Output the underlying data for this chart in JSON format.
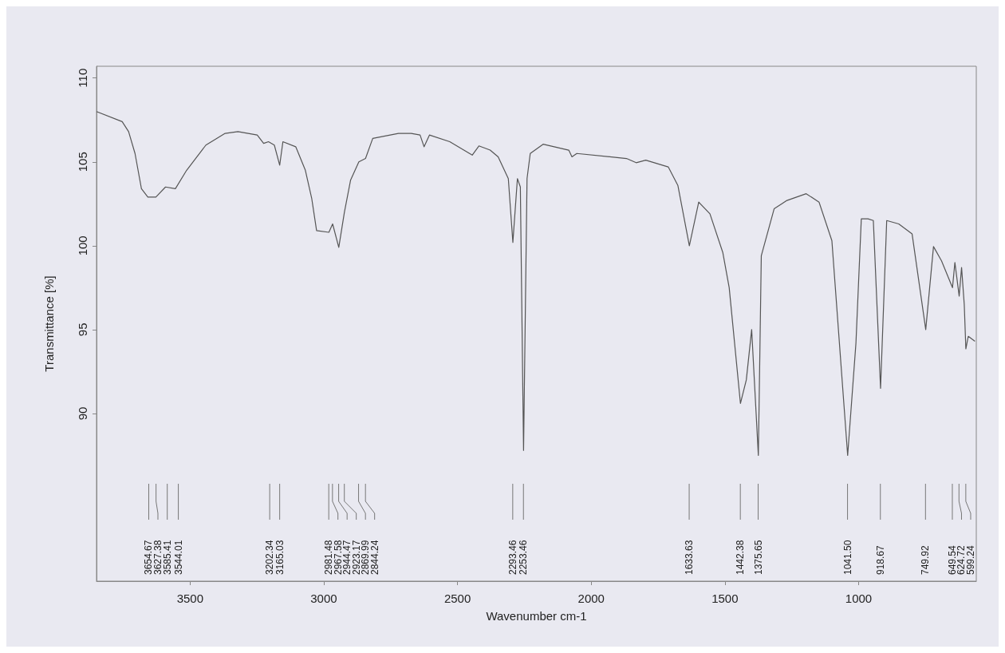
{
  "chart_data": {
    "type": "line",
    "xlabel": "Wavenumber cm-1",
    "ylabel": "Transmittance [%]",
    "xlim": [
      3850,
      560
    ],
    "xticks": [
      3500,
      3000,
      2500,
      2000,
      1500,
      1000
    ],
    "ylim": [
      80,
      110.7
    ],
    "yticks": [
      90,
      95,
      100,
      105,
      110
    ],
    "grid": false,
    "marker": "none",
    "line_style": "solid",
    "x": [
      3850,
      3754,
      3730,
      3706,
      3682,
      3658,
      3628,
      3592,
      3555,
      3513,
      3441,
      3369,
      3321,
      3249,
      3225,
      3207,
      3185,
      3165,
      3153,
      3105,
      3069,
      3045,
      3027,
      2981,
      2967,
      2944,
      2923,
      2900,
      2869,
      2844,
      2817,
      2721,
      2673,
      2640,
      2625,
      2605,
      2529,
      2445,
      2420,
      2378,
      2348,
      2310,
      2293,
      2276,
      2265,
      2253,
      2240,
      2228,
      2180,
      2084,
      2072,
      2054,
      1868,
      1832,
      1796,
      1712,
      1676,
      1633,
      1598,
      1556,
      1508,
      1484,
      1442,
      1420,
      1400,
      1375,
      1364,
      1316,
      1268,
      1196,
      1148,
      1100,
      1041,
      1010,
      990,
      965,
      945,
      918,
      895,
      850,
      800,
      749,
      720,
      690,
      649,
      640,
      624,
      615,
      605,
      599,
      590,
      565
    ],
    "series": [
      {
        "color": "#555555",
        "values": [
          108.0,
          107.4,
          106.8,
          105.5,
          103.4,
          102.9,
          102.9,
          103.5,
          103.4,
          104.5,
          106.0,
          106.7,
          106.8,
          106.6,
          106.1,
          106.2,
          106.0,
          104.8,
          106.2,
          105.9,
          104.5,
          102.8,
          100.9,
          100.8,
          101.3,
          99.9,
          102.0,
          103.9,
          105.0,
          105.2,
          106.4,
          106.7,
          106.7,
          106.6,
          105.9,
          106.6,
          106.2,
          105.4,
          105.95,
          105.7,
          105.3,
          104.0,
          100.2,
          104.0,
          103.5,
          87.8,
          104.0,
          105.5,
          106.05,
          105.7,
          105.3,
          105.5,
          105.2,
          104.95,
          105.1,
          104.7,
          103.6,
          100.0,
          102.6,
          101.9,
          99.6,
          97.5,
          90.6,
          92.0,
          95.0,
          87.5,
          99.4,
          102.2,
          102.7,
          103.1,
          102.6,
          100.3,
          87.5,
          94.2,
          101.6,
          101.6,
          101.5,
          91.5,
          101.5,
          101.3,
          100.7,
          95.0,
          99.95,
          99.1,
          97.5,
          99.0,
          97.0,
          98.7,
          96.5,
          93.85,
          94.6,
          94.3
        ]
      }
    ],
    "annotations": [
      "3654.67",
      "3627.38",
      "3585.41",
      "3544.01",
      "3202.34",
      "3165.03",
      "2981.48",
      "2967.58",
      "2944.47",
      "2923.17",
      "2869.99",
      "2844.24",
      "2293.46",
      "2253.46",
      "1633.63",
      "1442.38",
      "1375.65",
      "1041.50",
      "918.67",
      "749.92",
      "649.54",
      "624.72",
      "599.24"
    ]
  }
}
